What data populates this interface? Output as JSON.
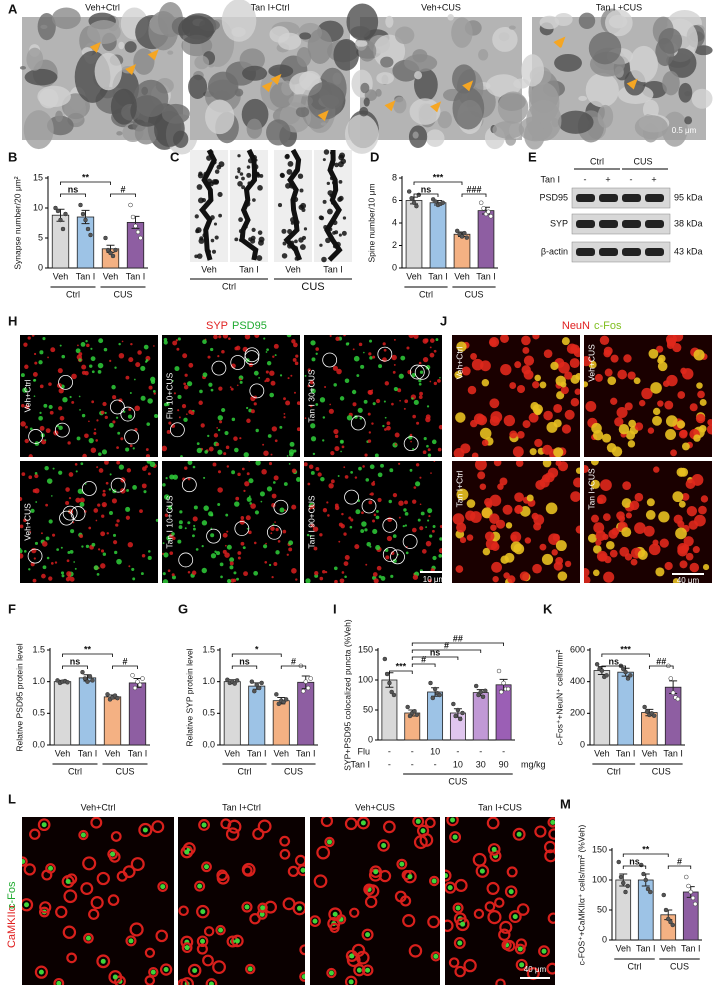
{
  "chart_data": [
    {
      "panel": "B",
      "type": "bar",
      "ylabel": "Synapse number/20 μm²",
      "categories": [
        "Veh",
        "Tan I",
        "Veh",
        "Tan I"
      ],
      "groups": [
        "Ctrl",
        "CUS"
      ],
      "values": [
        8.8,
        8.5,
        3.2,
        7.6
      ],
      "errors": [
        1.0,
        1.1,
        0.6,
        1.0
      ],
      "points": [
        [
          10,
          9.5,
          8,
          6.5,
          9
        ],
        [
          10.5,
          9,
          8,
          6.5,
          5.5
        ],
        [
          5,
          3,
          2.5,
          2,
          3
        ],
        [
          10.5,
          8.5,
          7,
          6,
          5
        ]
      ],
      "colors": [
        "#d9d9d9",
        "#9dc3e6",
        "#f4b183",
        "#8e5ea2"
      ],
      "ylim": [
        0,
        15
      ],
      "yticks": [
        0,
        5,
        10,
        15
      ],
      "annotations": [
        "**",
        "ns",
        "#"
      ]
    },
    {
      "panel": "D",
      "type": "bar",
      "ylabel": "Spine number/10 μm",
      "categories": [
        "Veh",
        "Tan I",
        "Veh",
        "Tan I"
      ],
      "groups": [
        "Ctrl",
        "CUS"
      ],
      "values": [
        6.0,
        5.8,
        3.0,
        5.1
      ],
      "errors": [
        0.3,
        0.2,
        0.2,
        0.3
      ],
      "points": [
        [
          6.8,
          6.2,
          5.8,
          5.5,
          6.5
        ],
        [
          6.1,
          5.9,
          5.6,
          5.7,
          5.8
        ],
        [
          3.3,
          3.0,
          2.8,
          3.1,
          2.7
        ],
        [
          5.8,
          5.3,
          4.8,
          5.0,
          4.6
        ]
      ],
      "colors": [
        "#d9d9d9",
        "#9dc3e6",
        "#f4b183",
        "#8e5ea2"
      ],
      "ylim": [
        0,
        8
      ],
      "yticks": [
        0,
        2,
        4,
        6,
        8
      ],
      "annotations": [
        "***",
        "ns",
        "###"
      ]
    },
    {
      "panel": "F",
      "type": "bar",
      "ylabel": "Relative PSD95 protein level",
      "categories": [
        "Veh",
        "Tan I",
        "Veh",
        "Tan I"
      ],
      "groups": [
        "Ctrl",
        "CUS"
      ],
      "values": [
        1.0,
        1.06,
        0.76,
        0.98
      ],
      "errors": [
        0.02,
        0.05,
        0.03,
        0.07
      ],
      "points": [
        [
          1.02,
          0.98,
          1.0,
          1.01,
          0.99
        ],
        [
          1.15,
          1.05,
          1.0,
          1.08,
          1.02
        ],
        [
          0.8,
          0.72,
          0.75,
          0.78,
          0.74
        ],
        [
          1.1,
          0.9,
          1.0,
          0.95,
          1.05
        ]
      ],
      "colors": [
        "#d9d9d9",
        "#9dc3e6",
        "#f4b183",
        "#8e5ea2"
      ],
      "ylim": [
        0,
        1.5
      ],
      "yticks": [
        {
          "value": 0,
          "label": "0.0"
        },
        0.5,
        {
          "value": 1,
          "label": "1.0"
        },
        1.5
      ],
      "annotations": [
        "**",
        "ns",
        "#"
      ]
    },
    {
      "panel": "G",
      "type": "bar",
      "ylabel": "Relative SYP protein level",
      "categories": [
        "Veh",
        "Tan I",
        "Veh",
        "Tan I"
      ],
      "groups": [
        "Ctrl",
        "CUS"
      ],
      "values": [
        1.0,
        0.93,
        0.7,
        0.99
      ],
      "errors": [
        0.03,
        0.05,
        0.05,
        0.1
      ],
      "points": [
        [
          1.03,
          0.98,
          1.0,
          0.97,
          1.02
        ],
        [
          1.0,
          0.85,
          0.95,
          0.9,
          0.98
        ],
        [
          0.8,
          0.65,
          0.7,
          0.68,
          0.72
        ],
        [
          1.25,
          0.85,
          1.0,
          0.9,
          1.05
        ]
      ],
      "colors": [
        "#d9d9d9",
        "#9dc3e6",
        "#f4b183",
        "#8e5ea2"
      ],
      "ylim": [
        0,
        1.5
      ],
      "yticks": [
        {
          "value": 0,
          "label": "0.0"
        },
        0.5,
        {
          "value": 1,
          "label": "1.0"
        },
        1.5
      ],
      "annotations": [
        "*",
        "ns",
        "#"
      ]
    },
    {
      "panel": "I",
      "type": "bar",
      "ylabel": "SYP+PSD95 colocalized puncta (%Veh)",
      "values": [
        100,
        45,
        80,
        45,
        79,
        92
      ],
      "errors": [
        12,
        5,
        7,
        7,
        5,
        9
      ],
      "points": [
        [
          135,
          110,
          95,
          80,
          75
        ],
        [
          55,
          40,
          45,
          48,
          42
        ],
        [
          95,
          70,
          85,
          78,
          75
        ],
        [
          60,
          40,
          50,
          35,
          45
        ],
        [
          90,
          75,
          80,
          72,
          82
        ],
        [
          115,
          80,
          95,
          85,
          85
        ]
      ],
      "colors": [
        "#d9d9d9",
        "#f4b183",
        "#9dc3e6",
        "#e0c6ee",
        "#c199d6",
        "#9b5fb5"
      ],
      "ylim": [
        0,
        150
      ],
      "yticks": [
        0,
        50,
        100,
        150
      ],
      "dose_rows": [
        {
          "label": "Flu",
          "values": [
            "-",
            "-",
            "10",
            "-",
            "-",
            "-"
          ]
        },
        {
          "label": "Tan I",
          "values": [
            "-",
            "-",
            "-",
            "10",
            "30",
            "90"
          ]
        }
      ],
      "dose_unit": "mg/kg",
      "groups": [
        "CUS"
      ],
      "annotations": [
        "***",
        "#",
        "ns",
        "#",
        "##"
      ]
    },
    {
      "panel": "K",
      "type": "bar",
      "ylabel": "c-Fos⁺+NeuN⁺ cells/mm²",
      "categories": [
        "Veh",
        "Tan I",
        "Veh",
        "Tan I"
      ],
      "groups": [
        "Ctrl",
        "CUS"
      ],
      "values": [
        470,
        460,
        205,
        365
      ],
      "errors": [
        25,
        25,
        20,
        40
      ],
      "points": [
        [
          510,
          480,
          470,
          430,
          440
        ],
        [
          500,
          480,
          460,
          420,
          440
        ],
        [
          240,
          210,
          190,
          200,
          185
        ],
        [
          500,
          420,
          330,
          300,
          290
        ]
      ],
      "colors": [
        "#d9d9d9",
        "#9dc3e6",
        "#f4b183",
        "#8e5ea2"
      ],
      "ylim": [
        0,
        600
      ],
      "yticks": [
        0,
        200,
        400,
        600
      ],
      "annotations": [
        "***",
        "ns",
        "##"
      ]
    },
    {
      "panel": "M",
      "type": "bar",
      "ylabel": "c-FOS⁺+CaMKIIα⁺ cells/mm² (%Veh)",
      "categories": [
        "Veh",
        "Tan I",
        "Veh",
        "Tan I"
      ],
      "groups": [
        "Ctrl",
        "CUS"
      ],
      "values": [
        100,
        100,
        42,
        80
      ],
      "errors": [
        10,
        10,
        8,
        9
      ],
      "points": [
        [
          130,
          105,
          95,
          80,
          90
        ],
        [
          125,
          110,
          100,
          85,
          80
        ],
        [
          75,
          50,
          35,
          30,
          25
        ],
        [
          105,
          90,
          80,
          70,
          60
        ]
      ],
      "colors": [
        "#d9d9d9",
        "#9dc3e6",
        "#f4b183",
        "#8e5ea2"
      ],
      "ylim": [
        0,
        150
      ],
      "yticks": [
        0,
        50,
        100,
        150
      ],
      "annotations": [
        "**",
        "ns",
        "#"
      ]
    }
  ],
  "images": {
    "A": {
      "panel": "A",
      "titles": [
        "Veh+Ctrl",
        "Tan I+Ctrl",
        "Veh+CUS",
        "Tan I +CUS"
      ],
      "scale": "0.5 μm"
    },
    "C": {
      "panel": "C",
      "labels": [
        "Veh",
        "Tan I",
        "Veh",
        "Tan I"
      ],
      "groups": [
        "Ctrl",
        "CUS"
      ]
    },
    "E": {
      "panel": "E",
      "treatment": "Tan I",
      "signs": [
        "-",
        "+",
        "-",
        "+"
      ],
      "groups": [
        "Ctrl",
        "CUS"
      ],
      "bands": [
        "PSD95",
        "SYP",
        "β-actin"
      ],
      "sizes": [
        "95 kDa",
        "38 kDa",
        "43 kDa"
      ]
    },
    "H": {
      "panel": "H",
      "stain": [
        "SYP",
        "PSD95"
      ],
      "labels": [
        "Veh+Ctrl",
        "Flu 10+CUS",
        "Tan I 30+CUS",
        "Veh+CUS",
        "Tan I 10+CUS",
        "Tan I 90+CUS"
      ],
      "scale": "10 μm"
    },
    "J": {
      "panel": "J",
      "stain": [
        "NeuN",
        "c-Fos"
      ],
      "labels": [
        "Veh+Ctrl",
        "Veh+CUS",
        "Tan I+Ctrl",
        "Tan I+CUS"
      ],
      "scale": "40 μm"
    },
    "L": {
      "panel": "L",
      "stain": [
        "CaMKIIα",
        "c-Fos"
      ],
      "titles": [
        "Veh+Ctrl",
        "Tan I+Ctrl",
        "Veh+CUS",
        "Tan I+CUS"
      ],
      "scale": "40 μm"
    }
  }
}
